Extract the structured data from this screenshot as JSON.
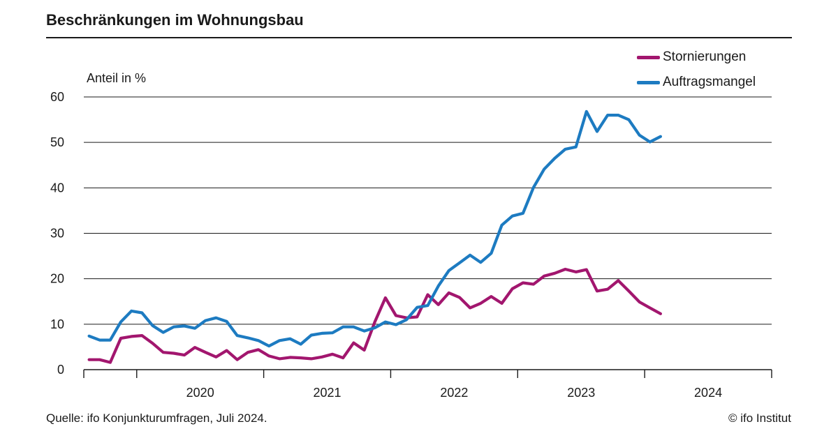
{
  "header": {
    "title": "Beschränkungen im Wohnungsbau"
  },
  "footer": {
    "source": "Quelle: ifo Konjunkturumfragen, Juli 2024.",
    "copyright": "© ifo Institut"
  },
  "chart_data": {
    "type": "line",
    "title": "Beschränkungen im Wohnungsbau",
    "ylabel": "Anteil in %",
    "xlabel": "",
    "ylim": [
      0,
      60
    ],
    "yticks": [
      0,
      10,
      20,
      30,
      40,
      50,
      60
    ],
    "grid": "horizontal",
    "legend_position": "top-right",
    "x_start": "2019-08",
    "x_range": [
      "2019-08",
      "2024-12"
    ],
    "year_labels": [
      "2020",
      "2021",
      "2022",
      "2023",
      "2024"
    ],
    "year_boundaries": [
      "2020-01",
      "2021-01",
      "2022-01",
      "2023-01",
      "2024-01",
      "2025-01"
    ],
    "series": [
      {
        "name": "Stornierungen",
        "color": "#a2166e",
        "values": [
          2.2,
          2.2,
          1.6,
          6.9,
          7.3,
          7.5,
          5.8,
          3.8,
          3.6,
          3.2,
          4.9,
          3.8,
          2.8,
          4.2,
          2.2,
          3.8,
          4.4,
          3.0,
          2.4,
          2.7,
          2.6,
          2.4,
          2.8,
          3.4,
          2.6,
          5.9,
          4.3,
          10.5,
          15.8,
          11.9,
          11.4,
          11.6,
          16.5,
          14.3,
          16.9,
          15.9,
          13.6,
          14.6,
          16.1,
          14.6,
          17.8,
          19.1,
          18.8,
          20.6,
          21.2,
          22.1,
          21.5,
          22.0,
          17.3,
          17.7,
          19.6,
          17.3,
          14.9,
          13.6,
          12.3
        ]
      },
      {
        "name": "Auftragsmangel",
        "color": "#1d7bc1",
        "values": [
          7.4,
          6.5,
          6.5,
          10.5,
          12.9,
          12.5,
          9.7,
          8.2,
          9.4,
          9.6,
          9.1,
          10.8,
          11.4,
          10.6,
          7.5,
          7.0,
          6.4,
          5.2,
          6.4,
          6.8,
          5.6,
          7.6,
          8.0,
          8.1,
          9.4,
          9.4,
          8.5,
          9.2,
          10.5,
          9.9,
          11.0,
          13.7,
          14.1,
          18.4,
          21.8,
          23.5,
          25.2,
          23.6,
          25.6,
          31.8,
          33.8,
          34.4,
          40.1,
          44.1,
          46.5,
          48.5,
          49.0,
          56.8,
          52.4,
          56.0,
          56.0,
          55.0,
          51.6,
          50.1,
          51.3
        ]
      }
    ]
  }
}
